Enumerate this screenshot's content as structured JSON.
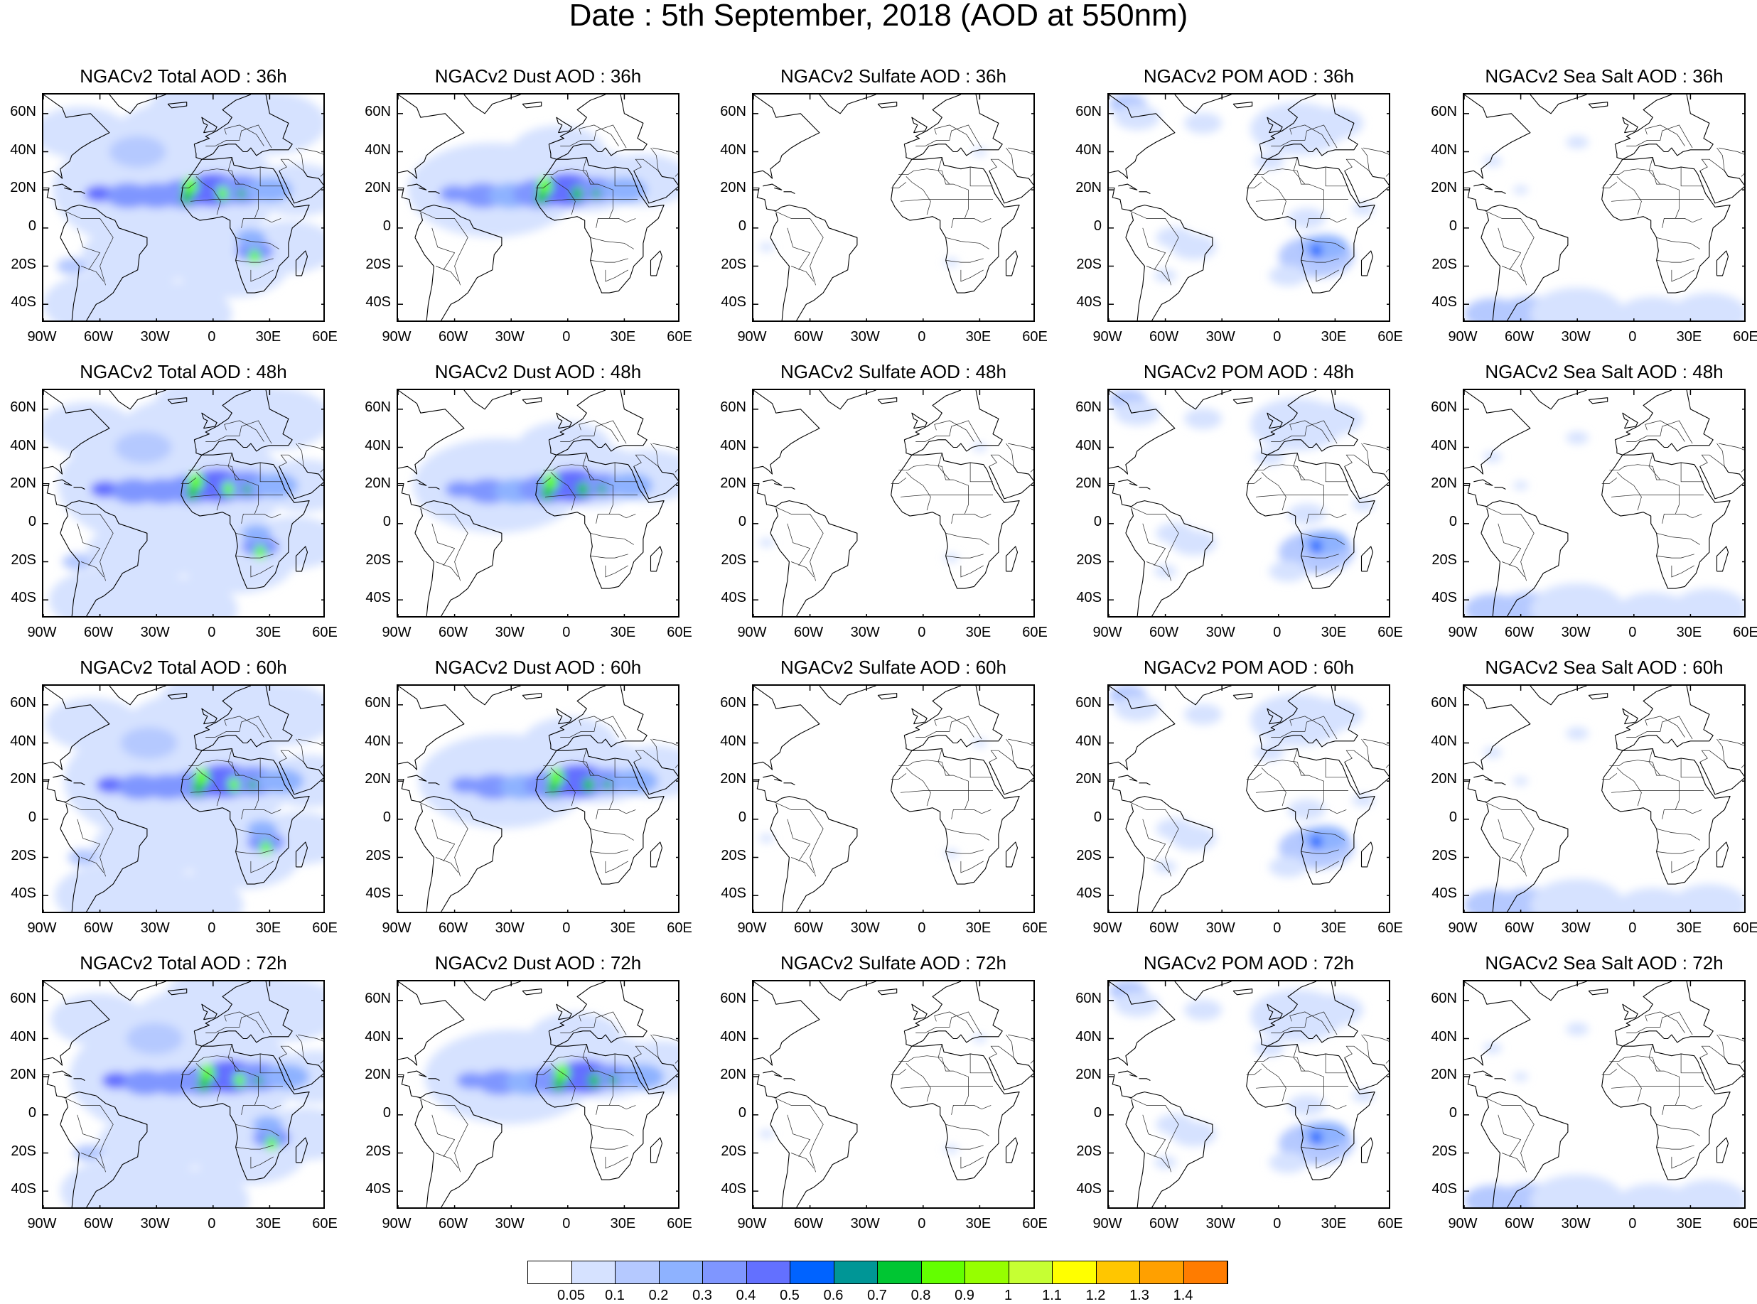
{
  "figure_title": "Date : 5th September, 2018 (AOD at 550nm)",
  "lon_labels": [
    "90W",
    "60W",
    "30W",
    "0",
    "30E",
    "60E"
  ],
  "lat_labels": [
    "60N",
    "40N",
    "20N",
    "0",
    "20S",
    "40S"
  ],
  "panels": [
    [
      "NGACv2 Total AOD : 36h",
      "NGACv2 Dust AOD : 36h",
      "NGACv2 Sulfate AOD : 36h",
      "NGACv2 POM AOD : 36h",
      "NGACv2 Sea Salt AOD : 36h"
    ],
    [
      "NGACv2 Total AOD : 48h",
      "NGACv2 Dust AOD : 48h",
      "NGACv2 Sulfate AOD : 48h",
      "NGACv2 POM AOD : 48h",
      "NGACv2 Sea Salt AOD : 48h"
    ],
    [
      "NGACv2 Total AOD : 60h",
      "NGACv2 Dust AOD : 60h",
      "NGACv2 Sulfate AOD : 60h",
      "NGACv2 POM AOD : 60h",
      "NGACv2 Sea Salt AOD : 60h"
    ],
    [
      "NGACv2 Total AOD : 72h",
      "NGACv2 Dust AOD : 72h",
      "NGACv2 Sulfate AOD : 72h",
      "NGACv2 POM AOD : 72h",
      "NGACv2 Sea Salt  AOD : 72h"
    ]
  ],
  "colorbar": {
    "colors": [
      "#ffffff",
      "#d6e2ff",
      "#b5c9ff",
      "#8eb2ff",
      "#7f96ff",
      "#6370ff",
      "#0063ff",
      "#009696",
      "#00c633",
      "#63ff00",
      "#96ff00",
      "#c6ff33",
      "#ffff00",
      "#ffc600",
      "#ffa000",
      "#ff7c00",
      "#ff1900"
    ],
    "labels": [
      "0.05",
      "0.1",
      "0.2",
      "0.3",
      "0.4",
      "0.5",
      "0.6",
      "0.7",
      "0.8",
      "0.9",
      "1",
      "1.1",
      "1.2",
      "1.3",
      "1.4"
    ]
  }
}
